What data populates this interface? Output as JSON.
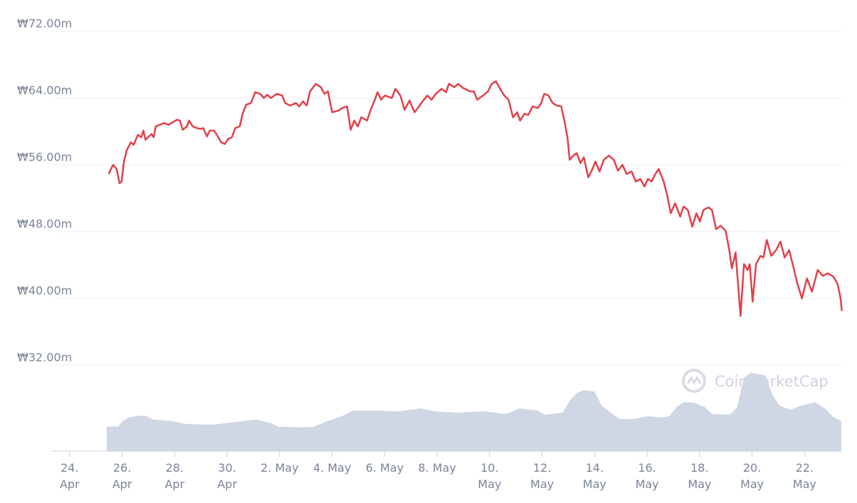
{
  "chart_data": {
    "type": "line",
    "watermark": "CoinMarketCap",
    "xlim": [
      23.3,
      53.4
    ],
    "xticks": [
      {
        "value": 24,
        "label": "24.\nApr"
      },
      {
        "value": 26,
        "label": "26.\nApr"
      },
      {
        "value": 28,
        "label": "28.\nApr"
      },
      {
        "value": 30,
        "label": "30.\nApr"
      },
      {
        "value": 32,
        "label": "2. May"
      },
      {
        "value": 34,
        "label": "4. May"
      },
      {
        "value": 36,
        "label": "6. May"
      },
      {
        "value": 38,
        "label": "8. May"
      },
      {
        "value": 40,
        "label": "10.\nMay"
      },
      {
        "value": 42,
        "label": "12.\nMay"
      },
      {
        "value": 44,
        "label": "14.\nMay"
      },
      {
        "value": 46,
        "label": "16.\nMay"
      },
      {
        "value": 48,
        "label": "18.\nMay"
      },
      {
        "value": 50,
        "label": "20.\nMay"
      },
      {
        "value": 52,
        "label": "22.\nMay"
      }
    ],
    "ylim": [
      21.7,
      72
    ],
    "yticks": [
      {
        "value": 72,
        "label": "₩72.00m"
      },
      {
        "value": 64,
        "label": "₩64.00m"
      },
      {
        "value": 56,
        "label": "₩56.00m"
      },
      {
        "value": 48,
        "label": "₩48.00m"
      },
      {
        "value": 40,
        "label": "₩40.00m"
      },
      {
        "value": 32,
        "label": "₩32.00m"
      }
    ],
    "y2lim": [
      0,
      600
    ],
    "grid": true,
    "series": [
      {
        "type": "line",
        "color": "#e2404a",
        "x": [
          25.49,
          25.65,
          25.79,
          25.9,
          25.98,
          26.06,
          26.17,
          26.33,
          26.44,
          26.6,
          26.73,
          26.81,
          26.89,
          27.12,
          27.2,
          27.28,
          27.6,
          27.77,
          28.09,
          28.2,
          28.31,
          28.47,
          28.55,
          28.69,
          28.85,
          28.99,
          29.09,
          29.23,
          29.34,
          29.5,
          29.61,
          29.77,
          29.91,
          30.04,
          30.18,
          30.31,
          30.48,
          30.59,
          30.72,
          30.91,
          31.07,
          31.26,
          31.4,
          31.53,
          31.67,
          31.89,
          32.1,
          32.21,
          32.4,
          32.62,
          32.75,
          32.89,
          33.03,
          33.16,
          33.38,
          33.57,
          33.71,
          33.84,
          34.0,
          34.25,
          34.38,
          34.57,
          34.71,
          34.84,
          34.98,
          35.11,
          35.33,
          35.47,
          35.63,
          35.73,
          35.87,
          36.01,
          36.28,
          36.41,
          36.6,
          36.76,
          36.95,
          37.14,
          37.31,
          37.47,
          37.63,
          37.79,
          37.95,
          38.17,
          38.34,
          38.45,
          38.66,
          38.8,
          38.99,
          39.26,
          39.4,
          39.53,
          39.75,
          39.94,
          40.08,
          40.24,
          40.4,
          40.56,
          40.72,
          40.89,
          41.05,
          41.16,
          41.32,
          41.48,
          41.64,
          41.83,
          41.97,
          42.08,
          42.24,
          42.4,
          42.56,
          42.73,
          42.86,
          42.97,
          43.05,
          43.19,
          43.32,
          43.46,
          43.59,
          43.76,
          43.92,
          44.03,
          44.19,
          44.35,
          44.54,
          44.73,
          44.89,
          45.06,
          45.22,
          45.41,
          45.57,
          45.74,
          45.9,
          46.03,
          46.17,
          46.31,
          46.44,
          46.63,
          46.77,
          46.9,
          47.07,
          47.26,
          47.39,
          47.55,
          47.72,
          47.88,
          48.01,
          48.15,
          48.34,
          48.47,
          48.63,
          48.8,
          48.99,
          49.12,
          49.23,
          49.37,
          49.56,
          49.69,
          49.83,
          49.91,
          50.02,
          50.15,
          50.32,
          50.43,
          50.56,
          50.73,
          50.92,
          51.08,
          51.24,
          51.41,
          51.57,
          51.73,
          51.9,
          52.09,
          52.28,
          52.5,
          52.69,
          52.88,
          53.1,
          53.26,
          53.37,
          53.42
        ],
        "values": [
          54.9,
          56.0,
          55.5,
          53.8,
          54.0,
          56.2,
          57.7,
          58.7,
          58.4,
          59.6,
          59.3,
          60.1,
          59.0,
          59.7,
          59.3,
          60.6,
          61.0,
          60.8,
          61.4,
          61.3,
          60.2,
          60.6,
          61.3,
          60.6,
          60.4,
          60.3,
          60.4,
          59.4,
          60.1,
          60.1,
          59.6,
          58.7,
          58.5,
          59.1,
          59.3,
          60.4,
          60.6,
          62.1,
          63.2,
          63.4,
          64.7,
          64.5,
          64.0,
          64.4,
          64.0,
          64.5,
          64.3,
          63.4,
          63.1,
          63.4,
          63.0,
          63.6,
          63.1,
          64.8,
          65.7,
          65.3,
          64.5,
          64.8,
          62.3,
          62.5,
          62.8,
          63.0,
          60.2,
          61.3,
          60.6,
          61.7,
          61.3,
          62.6,
          63.8,
          64.7,
          63.8,
          64.3,
          64.0,
          65.1,
          64.3,
          62.6,
          63.7,
          62.3,
          63.0,
          63.7,
          64.3,
          63.8,
          64.5,
          65.1,
          64.7,
          65.7,
          65.3,
          65.7,
          65.2,
          64.8,
          64.8,
          63.8,
          64.3,
          64.8,
          65.7,
          66.0,
          65.1,
          64.3,
          63.8,
          61.7,
          62.3,
          61.3,
          62.1,
          62.0,
          63.0,
          62.8,
          63.4,
          64.5,
          64.3,
          63.4,
          63.1,
          63.0,
          61.1,
          59.2,
          56.6,
          57.1,
          57.4,
          56.2,
          56.9,
          54.5,
          55.5,
          56.4,
          55.2,
          56.6,
          57.1,
          56.6,
          55.3,
          56.0,
          54.9,
          55.2,
          54.0,
          54.3,
          53.4,
          54.3,
          54.0,
          54.9,
          55.5,
          54.0,
          52.3,
          50.2,
          51.4,
          49.8,
          51.0,
          50.6,
          48.6,
          50.2,
          49.2,
          50.6,
          50.9,
          50.6,
          48.3,
          48.7,
          48.1,
          46.0,
          43.6,
          45.5,
          37.9,
          44.1,
          43.4,
          44.1,
          39.6,
          44.1,
          45.1,
          44.9,
          47.0,
          45.1,
          45.8,
          46.8,
          44.9,
          45.8,
          43.8,
          41.7,
          40.0,
          42.4,
          40.8,
          43.4,
          42.7,
          43.0,
          42.6,
          41.7,
          40.0,
          38.5
        ]
      },
      {
        "type": "area",
        "axis": "y2",
        "color": "#cfd6e4",
        "x": [
          25.41,
          25.84,
          26.03,
          26.25,
          26.66,
          26.93,
          27.2,
          27.88,
          28.42,
          28.96,
          29.5,
          30.59,
          31.13,
          31.67,
          31.94,
          32.75,
          33.3,
          33.84,
          34.38,
          34.79,
          35.47,
          36.55,
          37.36,
          37.9,
          38.72,
          39.8,
          40.61,
          41.15,
          41.83,
          42.1,
          42.78,
          43.05,
          43.32,
          43.59,
          44.0,
          44.27,
          44.68,
          44.95,
          45.49,
          46.03,
          46.57,
          46.85,
          47.12,
          47.39,
          47.79,
          48.2,
          48.47,
          49.15,
          49.42,
          49.69,
          49.96,
          50.5,
          50.78,
          51.05,
          51.45,
          51.86,
          52.4,
          52.81,
          53.08,
          53.4
        ],
        "values": [
          35,
          35,
          43,
          48,
          51,
          50,
          45,
          43,
          39,
          38,
          38,
          43,
          45,
          40,
          35,
          34,
          35,
          43,
          50,
          58,
          58,
          57,
          61,
          57,
          55,
          57,
          53,
          61,
          58,
          52,
          55,
          72,
          83,
          87,
          85,
          65,
          53,
          46,
          46,
          50,
          48,
          50,
          63,
          70,
          69,
          63,
          53,
          52,
          62,
          105,
          112,
          108,
          80,
          65,
          59,
          65,
          70,
          60,
          49,
          43
        ]
      }
    ]
  }
}
